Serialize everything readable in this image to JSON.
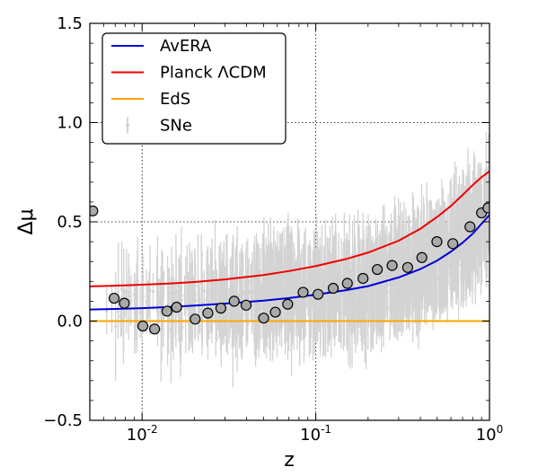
{
  "chart_data": {
    "type": "scatter",
    "title": "",
    "xlabel": "z",
    "ylabel": "Δμ",
    "xscale": "log",
    "xlim": [
      0.005,
      1.0
    ],
    "ylim": [
      -0.5,
      1.5
    ],
    "xticks": [
      {
        "value": 0.01,
        "base": "10",
        "exp": "-2"
      },
      {
        "value": 0.1,
        "base": "10",
        "exp": "-1"
      },
      {
        "value": 1.0,
        "base": "10",
        "exp": "0"
      }
    ],
    "yticks": [
      {
        "value": -0.5,
        "label": "−0.5"
      },
      {
        "value": 0.0,
        "label": "0.0"
      },
      {
        "value": 0.5,
        "label": "0.5"
      },
      {
        "value": 1.0,
        "label": "1.0"
      },
      {
        "value": 1.5,
        "label": "1.5"
      }
    ],
    "grid": "dotted at major ticks",
    "legend_position": "top-left",
    "series": [
      {
        "name": "AvERA",
        "kind": "line",
        "color": "#0000dd",
        "x": [
          0.005,
          0.007,
          0.01,
          0.015,
          0.02,
          0.03,
          0.05,
          0.07,
          0.1,
          0.15,
          0.2,
          0.3,
          0.4,
          0.5,
          0.6,
          0.7,
          0.8,
          0.9,
          1.0
        ],
        "y": [
          0.058,
          0.061,
          0.065,
          0.072,
          0.078,
          0.088,
          0.103,
          0.116,
          0.133,
          0.156,
          0.176,
          0.22,
          0.262,
          0.305,
          0.35,
          0.395,
          0.44,
          0.49,
          0.535
        ]
      },
      {
        "name": "Planck ΛCDM",
        "kind": "line",
        "color": "#ee0000",
        "x": [
          0.005,
          0.007,
          0.01,
          0.015,
          0.02,
          0.03,
          0.05,
          0.07,
          0.1,
          0.15,
          0.2,
          0.3,
          0.4,
          0.5,
          0.6,
          0.7,
          0.8,
          0.9,
          1.0
        ],
        "y": [
          0.175,
          0.178,
          0.183,
          0.19,
          0.197,
          0.21,
          0.232,
          0.252,
          0.277,
          0.313,
          0.345,
          0.405,
          0.465,
          0.525,
          0.58,
          0.635,
          0.685,
          0.725,
          0.755
        ]
      },
      {
        "name": "EdS",
        "kind": "line",
        "color": "#ffa500",
        "x": [
          0.005,
          1.0
        ],
        "y": [
          0.0,
          0.0
        ]
      },
      {
        "name": "SNe",
        "kind": "errorbar-points",
        "color": "#d3d3d3",
        "note": "dense cloud of supernova points with error bars; scatter centered on the binned trend"
      },
      {
        "kind": "binned-means",
        "color": "#a9a9a9",
        "x": [
          0.0052,
          0.0069,
          0.0079,
          0.0101,
          0.0118,
          0.0139,
          0.0158,
          0.0202,
          0.0239,
          0.0284,
          0.0339,
          0.0397,
          0.0501,
          0.0585,
          0.0689,
          0.0845,
          0.103,
          0.126,
          0.152,
          0.187,
          0.226,
          0.275,
          0.338,
          0.408,
          0.498,
          0.615,
          0.772,
          0.9,
          0.98
        ],
        "y": [
          0.555,
          0.115,
          0.09,
          -0.025,
          -0.04,
          0.05,
          0.07,
          0.01,
          0.04,
          0.065,
          0.1,
          0.08,
          0.015,
          0.045,
          0.085,
          0.145,
          0.135,
          0.165,
          0.19,
          0.215,
          0.26,
          0.28,
          0.27,
          0.32,
          0.4,
          0.39,
          0.475,
          0.545,
          0.57
        ]
      }
    ]
  }
}
